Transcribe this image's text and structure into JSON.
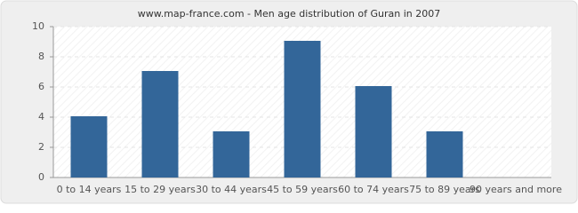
{
  "chart_data": {
    "type": "bar",
    "title": "www.map-france.com - Men age distribution of Guran in 2007",
    "categories": [
      "0 to 14 years",
      "15 to 29 years",
      "30 to 44 years",
      "45 to 59 years",
      "60 to 74 years",
      "75 to 89 years",
      "90 years and more"
    ],
    "values": [
      4,
      7,
      3,
      9,
      6,
      3,
      0
    ],
    "color": "#336699",
    "ylim": [
      0,
      10
    ],
    "yticks": [
      0,
      2,
      4,
      6,
      8,
      10
    ],
    "grid": true
  }
}
